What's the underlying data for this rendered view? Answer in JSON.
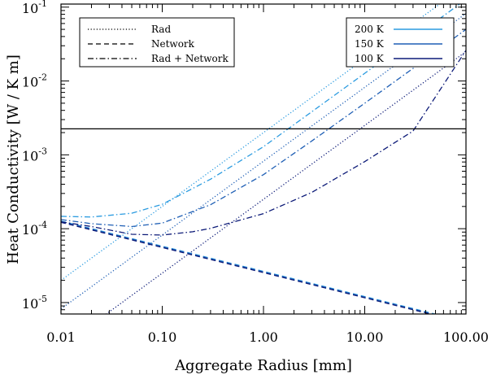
{
  "chart_data": {
    "type": "line",
    "xlabel": "Aggregate Radius [mm]",
    "ylabel": "Heat Conductivity [W / K m]",
    "xscale": "log",
    "yscale": "log",
    "xlim": [
      0.01,
      100
    ],
    "ylim": [
      7e-06,
      0.11
    ],
    "x_tick_values": [
      0.01,
      0.1,
      1,
      10,
      100
    ],
    "x_tick_labels": [
      "0.01",
      "0.10",
      "1.00",
      "10.00",
      "100.00"
    ],
    "y_tick_values": [
      1e-05,
      0.0001,
      0.001,
      0.01,
      0.1
    ],
    "y_tick_labels": [
      {
        "base": "10",
        "exp": "-5"
      },
      {
        "base": "10",
        "exp": "-4"
      },
      {
        "base": "10",
        "exp": "-3"
      },
      {
        "base": "10",
        "exp": "-2"
      },
      {
        "base": "10",
        "exp": "-1"
      }
    ],
    "grid": false,
    "style_legend": {
      "placement": "top-left",
      "entries": [
        {
          "label": "Rad",
          "dash": "dotted"
        },
        {
          "label": "Network",
          "dash": "dashed"
        },
        {
          "label": "Rad + Network",
          "dash": "dash-dot"
        }
      ]
    },
    "temperature_legend": {
      "placement": "top-right",
      "entries": [
        {
          "label": "200 K",
          "color": "#2b9be0"
        },
        {
          "label": "150 K",
          "color": "#1f5fb5"
        },
        {
          "label": "100 K",
          "color": "#0d1b78"
        }
      ]
    },
    "reference_line": {
      "y": 0.00225,
      "color": "#000000"
    },
    "series": [
      {
        "temperature": "200 K",
        "kind": "Rad",
        "color": "#2b9be0",
        "dash": "dotted",
        "x": [
          0.01,
          100
        ],
        "y": [
          2e-05,
          0.2
        ]
      },
      {
        "temperature": "150 K",
        "kind": "Rad",
        "color": "#1f5fb5",
        "dash": "dotted",
        "x": [
          0.01,
          100
        ],
        "y": [
          8.2e-06,
          0.082
        ]
      },
      {
        "temperature": "100 K",
        "kind": "Rad",
        "color": "#0d1b78",
        "dash": "dotted",
        "x": [
          0.01,
          100
        ],
        "y": [
          2.5e-06,
          0.025
        ]
      },
      {
        "temperature": "200 K",
        "kind": "Network",
        "color": "#2b9be0",
        "dash": "dashed",
        "x": [
          0.01,
          100
        ],
        "y": [
          0.000127,
          5.5e-06
        ]
      },
      {
        "temperature": "150 K",
        "kind": "Network",
        "color": "#1f5fb5",
        "dash": "dashed",
        "x": [
          0.01,
          100
        ],
        "y": [
          0.000125,
          5.4e-06
        ]
      },
      {
        "temperature": "100 K",
        "kind": "Network",
        "color": "#0d1b78",
        "dash": "dashed",
        "x": [
          0.01,
          100
        ],
        "y": [
          0.000122,
          5.3e-06
        ]
      },
      {
        "temperature": "200 K",
        "kind": "Rad + Network",
        "color": "#2b9be0",
        "dash": "dash-dot",
        "x": [
          0.01,
          0.02,
          0.05,
          0.1,
          0.3,
          1,
          3,
          10,
          30,
          100
        ],
        "y": [
          0.000147,
          0.000144,
          0.000162,
          0.000214,
          0.000468,
          0.00129,
          0.00383,
          0.0127,
          0.0381,
          0.127
        ]
      },
      {
        "temperature": "150 K",
        "kind": "Rad + Network",
        "color": "#1f5fb5",
        "dash": "dash-dot",
        "x": [
          0.01,
          0.02,
          0.05,
          0.1,
          0.3,
          1,
          3,
          10,
          30,
          100
        ],
        "y": [
          0.000133,
          0.000117,
          0.000107,
          0.000119,
          0.000211,
          0.00054,
          0.00154,
          0.005,
          0.0148,
          0.05
        ]
      },
      {
        "temperature": "100 K",
        "kind": "Rad + Network",
        "color": "#0d1b78",
        "dash": "dash-dot",
        "x": [
          0.01,
          0.02,
          0.05,
          0.1,
          0.2,
          0.3,
          1,
          3,
          10,
          30,
          100
        ],
        "y": [
          0.000124,
          0.000107,
          8.4e-05,
          8.2e-05,
          9.1e-05,
          0.000101,
          0.00016,
          0.00031,
          0.00081,
          0.0021,
          0.026
        ]
      }
    ]
  }
}
